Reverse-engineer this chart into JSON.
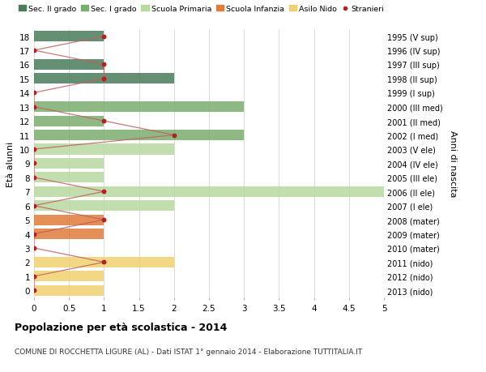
{
  "ages": [
    18,
    17,
    16,
    15,
    14,
    13,
    12,
    11,
    10,
    9,
    8,
    7,
    6,
    5,
    4,
    3,
    2,
    1,
    0
  ],
  "years": [
    "1995 (V sup)",
    "1996 (IV sup)",
    "1997 (III sup)",
    "1998 (II sup)",
    "1999 (I sup)",
    "2000 (III med)",
    "2001 (II med)",
    "2002 (I med)",
    "2003 (V ele)",
    "2004 (IV ele)",
    "2005 (III ele)",
    "2006 (II ele)",
    "2007 (I ele)",
    "2008 (mater)",
    "2009 (mater)",
    "2010 (mater)",
    "2011 (nido)",
    "2012 (nido)",
    "2013 (nido)"
  ],
  "bar_values": [
    1,
    0,
    1,
    2,
    0,
    3,
    1,
    3,
    2,
    1,
    1,
    5,
    2,
    1,
    1,
    0,
    2,
    1,
    1
  ],
  "bar_colors": [
    "#4a7c59",
    "#4a7c59",
    "#4a7c59",
    "#4a7c59",
    "#4a7c59",
    "#7aad6e",
    "#7aad6e",
    "#7aad6e",
    "#b8d9a0",
    "#b8d9a0",
    "#b8d9a0",
    "#b8d9a0",
    "#b8d9a0",
    "#e07b39",
    "#e07b39",
    "#e07b39",
    "#f0d070",
    "#f0d070",
    "#f0d070"
  ],
  "stranieri_x": [
    1,
    0,
    1,
    1,
    0,
    0,
    1,
    2,
    0,
    0,
    0,
    1,
    0,
    1,
    0,
    0,
    1,
    0,
    0
  ],
  "title_bold": "Popolazione per età scolastica - 2014",
  "subtitle": "COMUNE DI ROCCHETTA LIGURE (AL) - Dati ISTAT 1° gennaio 2014 - Elaborazione TUTTITALIA.IT",
  "ylabel": "Età alunni",
  "ylabel_right": "Anni di nascita",
  "xlim": [
    0,
    5.0
  ],
  "xticks": [
    0,
    0.5,
    1.0,
    1.5,
    2.0,
    2.5,
    3.0,
    3.5,
    4.0,
    4.5,
    5.0
  ],
  "color_sec2": "#4a7c59",
  "color_sec1": "#7aad6e",
  "color_prim": "#b8d9a0",
  "color_inf": "#e07b39",
  "color_nido": "#f0d070",
  "color_stranieri": "#b22222",
  "color_line": "#c06060",
  "bg_color": "#ffffff",
  "grid_color": "#cccccc"
}
